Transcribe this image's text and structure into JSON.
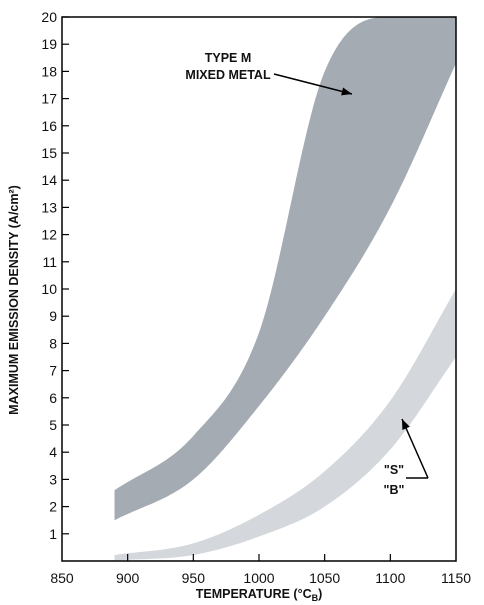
{
  "chart_data": {
    "type": "area",
    "title": "",
    "xlabel": "TEMPERATURE (°C",
    "xlabel_sub": "B",
    "xlabel_close": ")",
    "ylabel": "MAXIMUM EMISSION DENSITY (A/cm²)",
    "xlim": [
      850,
      1150
    ],
    "ylim": [
      0,
      20
    ],
    "x_ticks": [
      850,
      900,
      950,
      1000,
      1050,
      1100,
      1150
    ],
    "y_ticks": [
      1,
      2,
      3,
      4,
      5,
      6,
      7,
      8,
      9,
      10,
      11,
      12,
      13,
      14,
      15,
      16,
      17,
      18,
      19,
      20
    ],
    "grid": false,
    "bands": [
      {
        "label_lines": [
          "TYPE M",
          "MIXED METAL"
        ],
        "color": "#a4abb3",
        "x": [
          890,
          950,
          1000,
          1050,
          1100,
          1150
        ],
        "upper": [
          2.6,
          4.6,
          8.4,
          18.0,
          20,
          20
        ],
        "lower": [
          1.5,
          3.0,
          5.7,
          9.0,
          13.0,
          18.3
        ]
      },
      {
        "label_lines": [
          "\"S\"",
          "\"B\""
        ],
        "color": "#d4d8dc",
        "x": [
          890,
          950,
          1000,
          1050,
          1100,
          1150
        ],
        "upper": [
          0.22,
          0.65,
          1.7,
          3.3,
          5.9,
          10.0
        ],
        "lower": [
          0.02,
          0.22,
          0.9,
          2.0,
          4.1,
          7.5
        ]
      }
    ]
  }
}
